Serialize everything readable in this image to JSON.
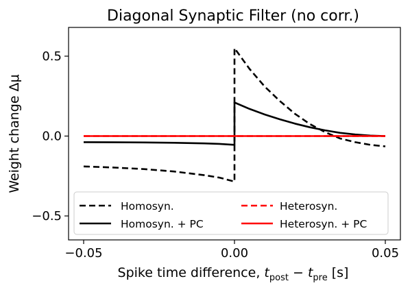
{
  "chart_data": {
    "type": "line",
    "title": "Diagonal Synaptic Filter (no corr.)",
    "xlabel": {
      "main": "Spike time difference, ",
      "t1": "t",
      "s1": "post",
      "minus": " − ",
      "t2": "t",
      "s2": "pre",
      "unit": " [s]"
    },
    "ylabel": "Weight change Δμ",
    "xlim": [
      -0.055,
      0.055
    ],
    "ylim": [
      -0.65,
      0.68
    ],
    "xticks": [
      {
        "v": -0.05,
        "label": "−0.05"
      },
      {
        "v": 0.0,
        "label": "0.00"
      },
      {
        "v": 0.05,
        "label": "0.05"
      }
    ],
    "yticks": [
      {
        "v": -0.5,
        "label": "−0.5"
      },
      {
        "v": 0.0,
        "label": "0.0"
      },
      {
        "v": 0.5,
        "label": "0.5"
      }
    ],
    "legend_position": "lower-center",
    "series": [
      {
        "name": "Homosyn.",
        "color": "#000000",
        "dash": "dashed",
        "x": [
          -0.05,
          -0.04,
          -0.03,
          -0.02,
          -0.01,
          -0.005,
          0.0,
          0.0,
          0.005,
          0.01,
          0.015,
          0.02,
          0.025,
          0.03,
          0.035,
          0.04,
          0.045,
          0.05
        ],
        "y": [
          -0.19,
          -0.197,
          -0.207,
          -0.222,
          -0.245,
          -0.26,
          -0.285,
          0.55,
          0.42,
          0.31,
          0.22,
          0.14,
          0.075,
          0.025,
          -0.015,
          -0.038,
          -0.055,
          -0.065
        ]
      },
      {
        "name": "Heterosyn.",
        "color": "#ff0000",
        "dash": "dashed",
        "x": [
          -0.05,
          0.05
        ],
        "y": [
          0.0,
          0.0
        ]
      },
      {
        "name": "Homosyn. + PC",
        "color": "#000000",
        "dash": "solid",
        "x": [
          -0.05,
          -0.04,
          -0.03,
          -0.02,
          -0.01,
          -0.005,
          0.0,
          0.0,
          0.005,
          0.01,
          0.015,
          0.02,
          0.025,
          0.03,
          0.035,
          0.04,
          0.045,
          0.05
        ],
        "y": [
          -0.038,
          -0.039,
          -0.04,
          -0.042,
          -0.046,
          -0.049,
          -0.055,
          0.21,
          0.17,
          0.135,
          0.105,
          0.078,
          0.055,
          0.036,
          0.02,
          0.01,
          0.003,
          0.0
        ]
      },
      {
        "name": "Heterosyn. + PC",
        "color": "#ff0000",
        "dash": "solid",
        "x": [
          -0.05,
          0.05
        ],
        "y": [
          0.0,
          0.0
        ]
      }
    ]
  }
}
